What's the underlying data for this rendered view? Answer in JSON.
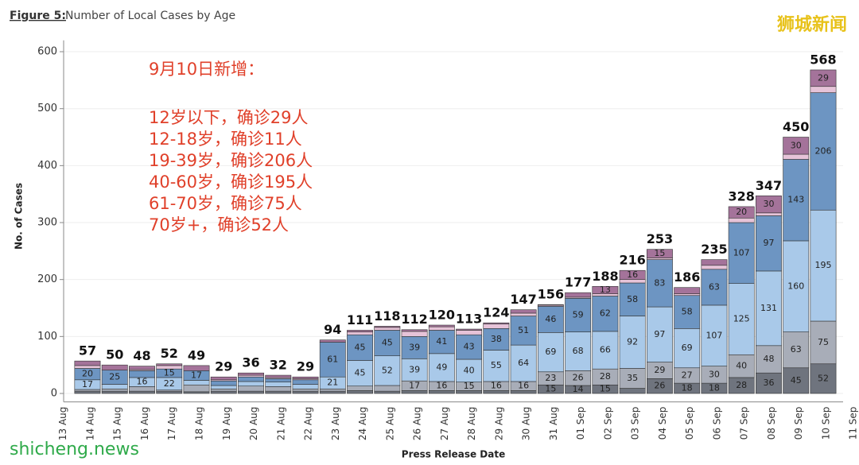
{
  "chart_data": {
    "type": "stacked_bar",
    "title_prefix": "Figure 5:",
    "title": "Number of Local Cases by Age",
    "y_label": "No. of Cases",
    "x_label": "Press Release Date",
    "annotation": [
      "9月10日新增：",
      "12岁以下，确诊29人",
      "12-18岁，确诊11人",
      "19-39岁，确诊206人",
      "40-60岁，确诊195人",
      "61-70岁，确诊75人",
      "70岁+，确诊52人"
    ],
    "watermarks": [
      "狮城新闻",
      "shicheng.news"
    ],
    "categories": [
      "13 Aug",
      "14 Aug",
      "15 Aug",
      "16 Aug",
      "17 Aug",
      "18 Aug",
      "19 Aug",
      "20 Aug",
      "21 Aug",
      "22 Aug",
      "23 Aug",
      "24 Aug",
      "25 Aug",
      "26 Aug",
      "27 Aug",
      "28 Aug",
      "29 Aug",
      "30 Aug",
      "31 Aug",
      "01 Sep",
      "02 Sep",
      "03 Sep",
      "04 Sep",
      "05 Sep",
      "06 Sep",
      "07 Sep",
      "08 Sep",
      "09 Sep",
      "10 Sep",
      "11 Sep"
    ],
    "totals": [
      null,
      57,
      50,
      48,
      52,
      49,
      29,
      36,
      32,
      29,
      94,
      111,
      118,
      112,
      120,
      113,
      124,
      147,
      156,
      177,
      188,
      216,
      253,
      186,
      235,
      328,
      347,
      450,
      568,
      null
    ],
    "series": [
      {
        "color": "#6f747e",
        "values": [
          null,
          4,
          4,
          4,
          4,
          3,
          4,
          4,
          4,
          4,
          4,
          5,
          4,
          5,
          5,
          5,
          5,
          5,
          15,
          14,
          15,
          9,
          26,
          18,
          18,
          28,
          36,
          45,
          52,
          null
        ]
      },
      {
        "color": "#a8adb8",
        "values": [
          null,
          3,
          4,
          8,
          2,
          12,
          4,
          9,
          8,
          4,
          4,
          8,
          10,
          17,
          16,
          15,
          16,
          16,
          23,
          26,
          28,
          35,
          29,
          27,
          30,
          40,
          48,
          63,
          75,
          null
        ]
      },
      {
        "color": "#a9c9e9",
        "values": [
          null,
          17,
          8,
          16,
          22,
          8,
          6,
          8,
          8,
          8,
          21,
          45,
          52,
          39,
          49,
          40,
          55,
          64,
          69,
          68,
          66,
          92,
          97,
          69,
          107,
          125,
          131,
          160,
          195,
          null
        ]
      },
      {
        "color": "#6d95c2",
        "values": [
          null,
          20,
          25,
          12,
          15,
          17,
          8,
          8,
          6,
          8,
          61,
          45,
          45,
          39,
          41,
          43,
          38,
          51,
          46,
          59,
          62,
          58,
          83,
          58,
          63,
          107,
          97,
          143,
          206,
          null
        ]
      },
      {
        "color": "#e6c3d8",
        "values": [
          null,
          5,
          0,
          2,
          6,
          0,
          2,
          3,
          2,
          2,
          0,
          5,
          5,
          9,
          6,
          8,
          8,
          5,
          2,
          2,
          4,
          6,
          3,
          3,
          7,
          8,
          5,
          9,
          11,
          null
        ]
      },
      {
        "color": "#a4739a",
        "values": [
          null,
          8,
          9,
          6,
          3,
          9,
          5,
          4,
          4,
          3,
          4,
          3,
          2,
          3,
          3,
          2,
          2,
          6,
          1,
          8,
          13,
          16,
          15,
          11,
          10,
          20,
          30,
          30,
          29,
          null
        ]
      }
    ],
    "ylim": [
      -12,
      620
    ],
    "yticks": [
      0,
      100,
      200,
      300,
      400,
      500,
      600
    ],
    "grid": true
  }
}
